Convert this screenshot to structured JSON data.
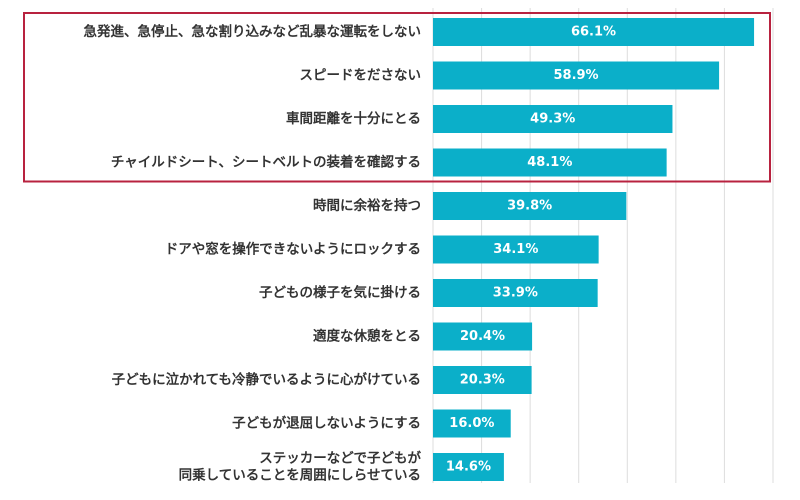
{
  "chart_data": {
    "type": "bar",
    "orientation": "horizontal",
    "categories": [
      [
        "急発進、急停止、急な割り込みなど乱暴な運転をしない"
      ],
      [
        "スピードをださない"
      ],
      [
        "車間距離を十分にとる"
      ],
      [
        "チャイルドシート、シートベルトの装着を確認する"
      ],
      [
        "時間に余裕を持つ"
      ],
      [
        "ドアや窓を操作できないようにロックする"
      ],
      [
        "子どもの様子を気に掛ける"
      ],
      [
        "適度な休憩をとる"
      ],
      [
        "子どもに泣かれても冷静でいるように心がけている"
      ],
      [
        "子どもが退屈しないようにする"
      ],
      [
        "ステッカーなどで子どもが",
        "同乗していることを周囲にしらせている"
      ]
    ],
    "values": [
      66.1,
      58.9,
      49.3,
      48.1,
      39.8,
      34.1,
      33.9,
      20.4,
      20.3,
      16.0,
      14.6
    ],
    "value_labels": [
      "66.1%",
      "58.9%",
      "49.3%",
      "48.1%",
      "39.8%",
      "34.1%",
      "33.9%",
      "20.4%",
      "20.3%",
      "16.0%",
      "14.6%"
    ],
    "xlim": [
      0,
      70
    ],
    "grid": true,
    "gridline_step": 10,
    "bar_color": "#0bafc9",
    "grid_color": "#dddddd",
    "highlight": {
      "start_index": 0,
      "end_index": 3,
      "color": "#b8223f"
    },
    "title": "",
    "xlabel": "",
    "ylabel": ""
  }
}
